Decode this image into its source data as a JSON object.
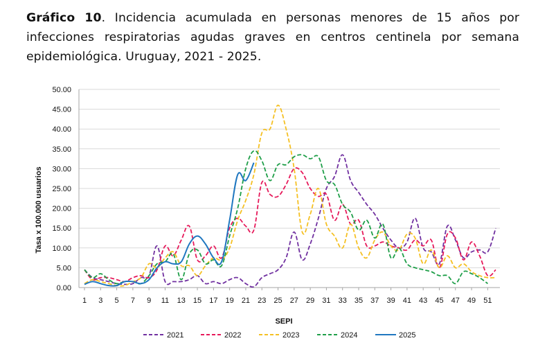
{
  "caption": {
    "label": "Gráfico 10",
    "text": ". Incidencia acumulada en personas menores de 15 años por infecciones respiratorias agudas graves en centros centinela por semana epidemiológica. Uruguay, 2021 - 2025."
  },
  "chart_data": {
    "type": "line",
    "title": "Incidencia acumulada en personas menores de 15 años por infecciones respiratorias agudas graves en centros centinela por semana epidemiológica. Uruguay, 2021 - 2025.",
    "xlabel": "SEPI",
    "ylabel": "Tasa x 100.000 usuarios",
    "ylim": [
      0,
      50
    ],
    "xlim": [
      1,
      52
    ],
    "y_ticks": [
      "0.00",
      "5.00",
      "10.00",
      "15.00",
      "20.00",
      "25.00",
      "30.00",
      "35.00",
      "40.00",
      "45.00",
      "50.00"
    ],
    "x_ticks": [
      1,
      3,
      5,
      7,
      9,
      11,
      13,
      15,
      17,
      19,
      21,
      23,
      25,
      27,
      29,
      31,
      33,
      35,
      37,
      39,
      41,
      43,
      45,
      47,
      49,
      51
    ],
    "legend_position": "bottom",
    "series": [
      {
        "name": "2021",
        "color": "#7030a0",
        "dash": "dashed",
        "values": [
          4.5,
          2.5,
          2.0,
          1.5,
          1.0,
          0.8,
          1.0,
          2.5,
          3.0,
          10.5,
          1.5,
          1.5,
          1.5,
          2.0,
          3.0,
          1.0,
          1.5,
          1.0,
          2.0,
          2.5,
          1.0,
          0.2,
          2.5,
          3.5,
          4.5,
          7.5,
          14.0,
          7.0,
          11.0,
          17.5,
          25.0,
          28.0,
          33.5,
          27.0,
          24.0,
          21.0,
          18.5,
          15.0,
          12.0,
          10.0,
          11.5,
          17.5,
          10.0,
          9.0,
          6.0,
          15.5,
          12.0,
          7.5,
          9.0,
          9.5,
          9.0,
          15.0
        ]
      },
      {
        "name": "2022",
        "color": "#e6195a",
        "dash": "dashed",
        "values": [
          4.5,
          2.0,
          2.5,
          2.5,
          2.0,
          1.5,
          2.5,
          3.0,
          2.5,
          4.5,
          10.5,
          8.0,
          12.0,
          15.5,
          7.0,
          8.0,
          10.5,
          7.5,
          15.0,
          17.5,
          15.5,
          14.5,
          26.5,
          23.5,
          23.0,
          26.0,
          30.0,
          29.0,
          25.0,
          23.0,
          23.5,
          17.0,
          21.0,
          16.0,
          17.0,
          10.5,
          10.5,
          11.5,
          10.5,
          10.0,
          9.5,
          12.0,
          10.5,
          12.0,
          5.0,
          13.5,
          12.5,
          7.0,
          11.5,
          8.0,
          3.0,
          4.5
        ]
      },
      {
        "name": "2023",
        "color": "#f5c022",
        "dash": "dashed",
        "values": [
          1.0,
          2.0,
          1.5,
          1.0,
          0.5,
          0.5,
          1.5,
          2.5,
          6.0,
          5.0,
          7.5,
          9.0,
          5.5,
          5.5,
          3.0,
          5.5,
          7.5,
          7.0,
          10.0,
          17.0,
          22.0,
          28.5,
          39.0,
          40.0,
          46.0,
          40.0,
          30.0,
          14.0,
          18.5,
          25.0,
          16.0,
          13.0,
          10.0,
          16.0,
          10.0,
          7.5,
          12.0,
          14.0,
          10.5,
          9.5,
          13.5,
          12.5,
          6.0,
          9.5,
          5.0,
          8.0,
          5.0,
          6.0,
          4.0,
          3.0,
          2.5,
          2.5
        ]
      },
      {
        "name": "2024",
        "color": "#1e9e48",
        "dash": "dashed",
        "values": [
          4.5,
          2.5,
          3.5,
          2.0,
          1.0,
          1.5,
          1.5,
          1.0,
          3.0,
          6.0,
          6.5,
          8.5,
          2.0,
          8.5,
          9.5,
          6.0,
          7.0,
          5.5,
          13.0,
          20.0,
          30.0,
          34.5,
          32.0,
          27.0,
          31.0,
          31.0,
          33.0,
          33.5,
          32.5,
          33.0,
          27.0,
          26.0,
          21.0,
          19.0,
          14.5,
          17.0,
          12.5,
          16.0,
          7.5,
          10.0,
          6.0,
          5.0,
          4.5,
          4.0,
          3.0,
          3.0,
          1.0,
          4.0,
          3.5,
          2.5,
          1.0
        ]
      },
      {
        "name": "2025",
        "color": "#1f77c0",
        "dash": "solid",
        "values": [
          0.8,
          1.5,
          1.0,
          0.5,
          0.5,
          1.5,
          1.5,
          1.0,
          2.0,
          5.0,
          6.5,
          6.0,
          6.5,
          11.0,
          13.0,
          11.0,
          7.5,
          6.5,
          17.0,
          28.5,
          27.0,
          31.5
        ]
      }
    ]
  }
}
